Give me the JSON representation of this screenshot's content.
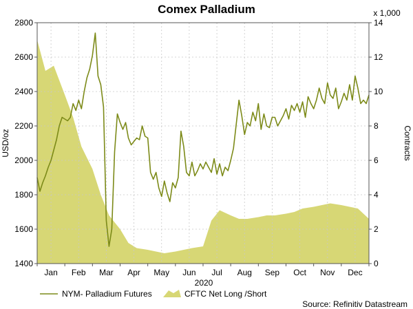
{
  "chart_data": {
    "type": "line",
    "title": "Comex Palladium",
    "xlabel": "2020",
    "ylabel": "USD/oz",
    "y2label": "Contracts",
    "y2_multiplier_label": "x 1,000",
    "source": "Source: Refinitiv Datastream",
    "ylim": [
      1400,
      2800
    ],
    "y2lim": [
      0,
      14
    ],
    "y_ticks": [
      "1400",
      "1600",
      "1800",
      "2000",
      "2200",
      "2400",
      "2600",
      "2800"
    ],
    "y2_ticks": [
      "0",
      "2",
      "4",
      "6",
      "8",
      "10",
      "12",
      "14"
    ],
    "x_ticks": [
      "Jan",
      "Feb",
      "Mar",
      "Apr",
      "May",
      "Jun",
      "Jul",
      "Aug",
      "Sep",
      "Oct",
      "Nov",
      "Dec"
    ],
    "grid": true,
    "legend_position": "bottom",
    "colors": {
      "line": "#7c8a18",
      "area": "#d7d775"
    },
    "series": [
      {
        "name": "NYM- Palladium Futures",
        "axis": "left",
        "type": "line",
        "x": [
          0,
          0.1,
          0.2,
          0.3,
          0.4,
          0.5,
          0.6,
          0.7,
          0.8,
          0.9,
          1.0,
          1.1,
          1.2,
          1.3,
          1.4,
          1.5,
          1.6,
          1.7,
          1.8,
          1.9,
          2.0,
          2.1,
          2.2,
          2.3,
          2.4,
          2.5,
          2.6,
          2.7,
          2.8,
          2.9,
          3.0,
          3.1,
          3.2,
          3.3,
          3.4,
          3.5,
          3.6,
          3.7,
          3.8,
          3.9,
          4.0,
          4.1,
          4.2,
          4.3,
          4.4,
          4.5,
          4.6,
          4.7,
          4.8,
          4.9,
          5.0,
          5.1,
          5.2,
          5.3,
          5.4,
          5.5,
          5.6,
          5.7,
          5.8,
          5.9,
          6.0,
          6.1,
          6.2,
          6.3,
          6.4,
          6.5,
          6.6,
          6.7,
          6.8,
          6.9,
          7.0,
          7.1,
          7.2,
          7.3,
          7.4,
          7.5,
          7.6,
          7.7,
          7.8,
          7.9,
          8.0,
          8.1,
          8.2,
          8.3,
          8.4,
          8.5,
          8.6,
          8.7,
          8.8,
          8.9,
          9.0,
          9.1,
          9.2,
          9.3,
          9.4,
          9.5,
          9.6,
          9.7,
          9.8,
          9.9,
          10.0,
          10.1,
          10.2,
          10.3,
          10.4,
          10.5,
          10.6,
          10.7,
          10.8,
          10.9,
          11.0,
          11.1,
          11.2,
          11.3,
          11.4,
          11.5,
          11.6,
          11.7,
          11.8,
          11.9,
          12.0
        ],
        "values": [
          1900,
          1820,
          1870,
          1910,
          1960,
          2000,
          2060,
          2120,
          2200,
          2250,
          2240,
          2230,
          2250,
          2330,
          2290,
          2350,
          2300,
          2400,
          2480,
          2530,
          2610,
          2740,
          2490,
          2440,
          2310,
          1650,
          1500,
          1600,
          2050,
          2270,
          2220,
          2180,
          2220,
          2130,
          2090,
          2110,
          2130,
          2120,
          2200,
          2140,
          2130,
          1930,
          1890,
          1930,
          1840,
          1790,
          1880,
          1810,
          1760,
          1870,
          1840,
          1900,
          2170,
          2080,
          1930,
          1910,
          1990,
          1910,
          1940,
          1980,
          1950,
          1990,
          1960,
          1930,
          2010,
          1920,
          1980,
          1910,
          1960,
          1940,
          2000,
          2070,
          2210,
          2350,
          2260,
          2150,
          2220,
          2200,
          2280,
          2230,
          2330,
          2180,
          2270,
          2200,
          2190,
          2250,
          2250,
          2200,
          2230,
          2260,
          2300,
          2240,
          2320,
          2290,
          2330,
          2280,
          2340,
          2250,
          2370,
          2330,
          2300,
          2350,
          2420,
          2360,
          2330,
          2450,
          2380,
          2360,
          2420,
          2300,
          2340,
          2390,
          2350,
          2440,
          2350,
          2490,
          2420,
          2330,
          2350,
          2330,
          2380
        ]
      },
      {
        "name": "CFTC Net Long /Short",
        "axis": "right",
        "type": "area",
        "x": [
          0,
          0.3,
          0.6,
          1.0,
          1.3,
          1.6,
          2.0,
          2.3,
          2.6,
          3.0,
          3.3,
          3.6,
          4.0,
          4.3,
          4.6,
          5.0,
          5.3,
          5.6,
          6.0,
          6.3,
          6.6,
          7.0,
          7.3,
          7.6,
          8.0,
          8.3,
          8.6,
          9.0,
          9.3,
          9.6,
          10.0,
          10.3,
          10.6,
          11.0,
          11.3,
          11.6,
          12.0
        ],
        "values": [
          13.0,
          11.2,
          11.5,
          9.8,
          8.5,
          6.8,
          5.5,
          4.0,
          2.8,
          2.0,
          1.2,
          0.9,
          0.8,
          0.7,
          0.6,
          0.7,
          0.8,
          0.9,
          1.0,
          2.5,
          3.1,
          2.8,
          2.6,
          2.6,
          2.7,
          2.8,
          2.8,
          2.9,
          3.0,
          3.2,
          3.3,
          3.4,
          3.5,
          3.4,
          3.3,
          3.2,
          2.6
        ]
      }
    ]
  }
}
